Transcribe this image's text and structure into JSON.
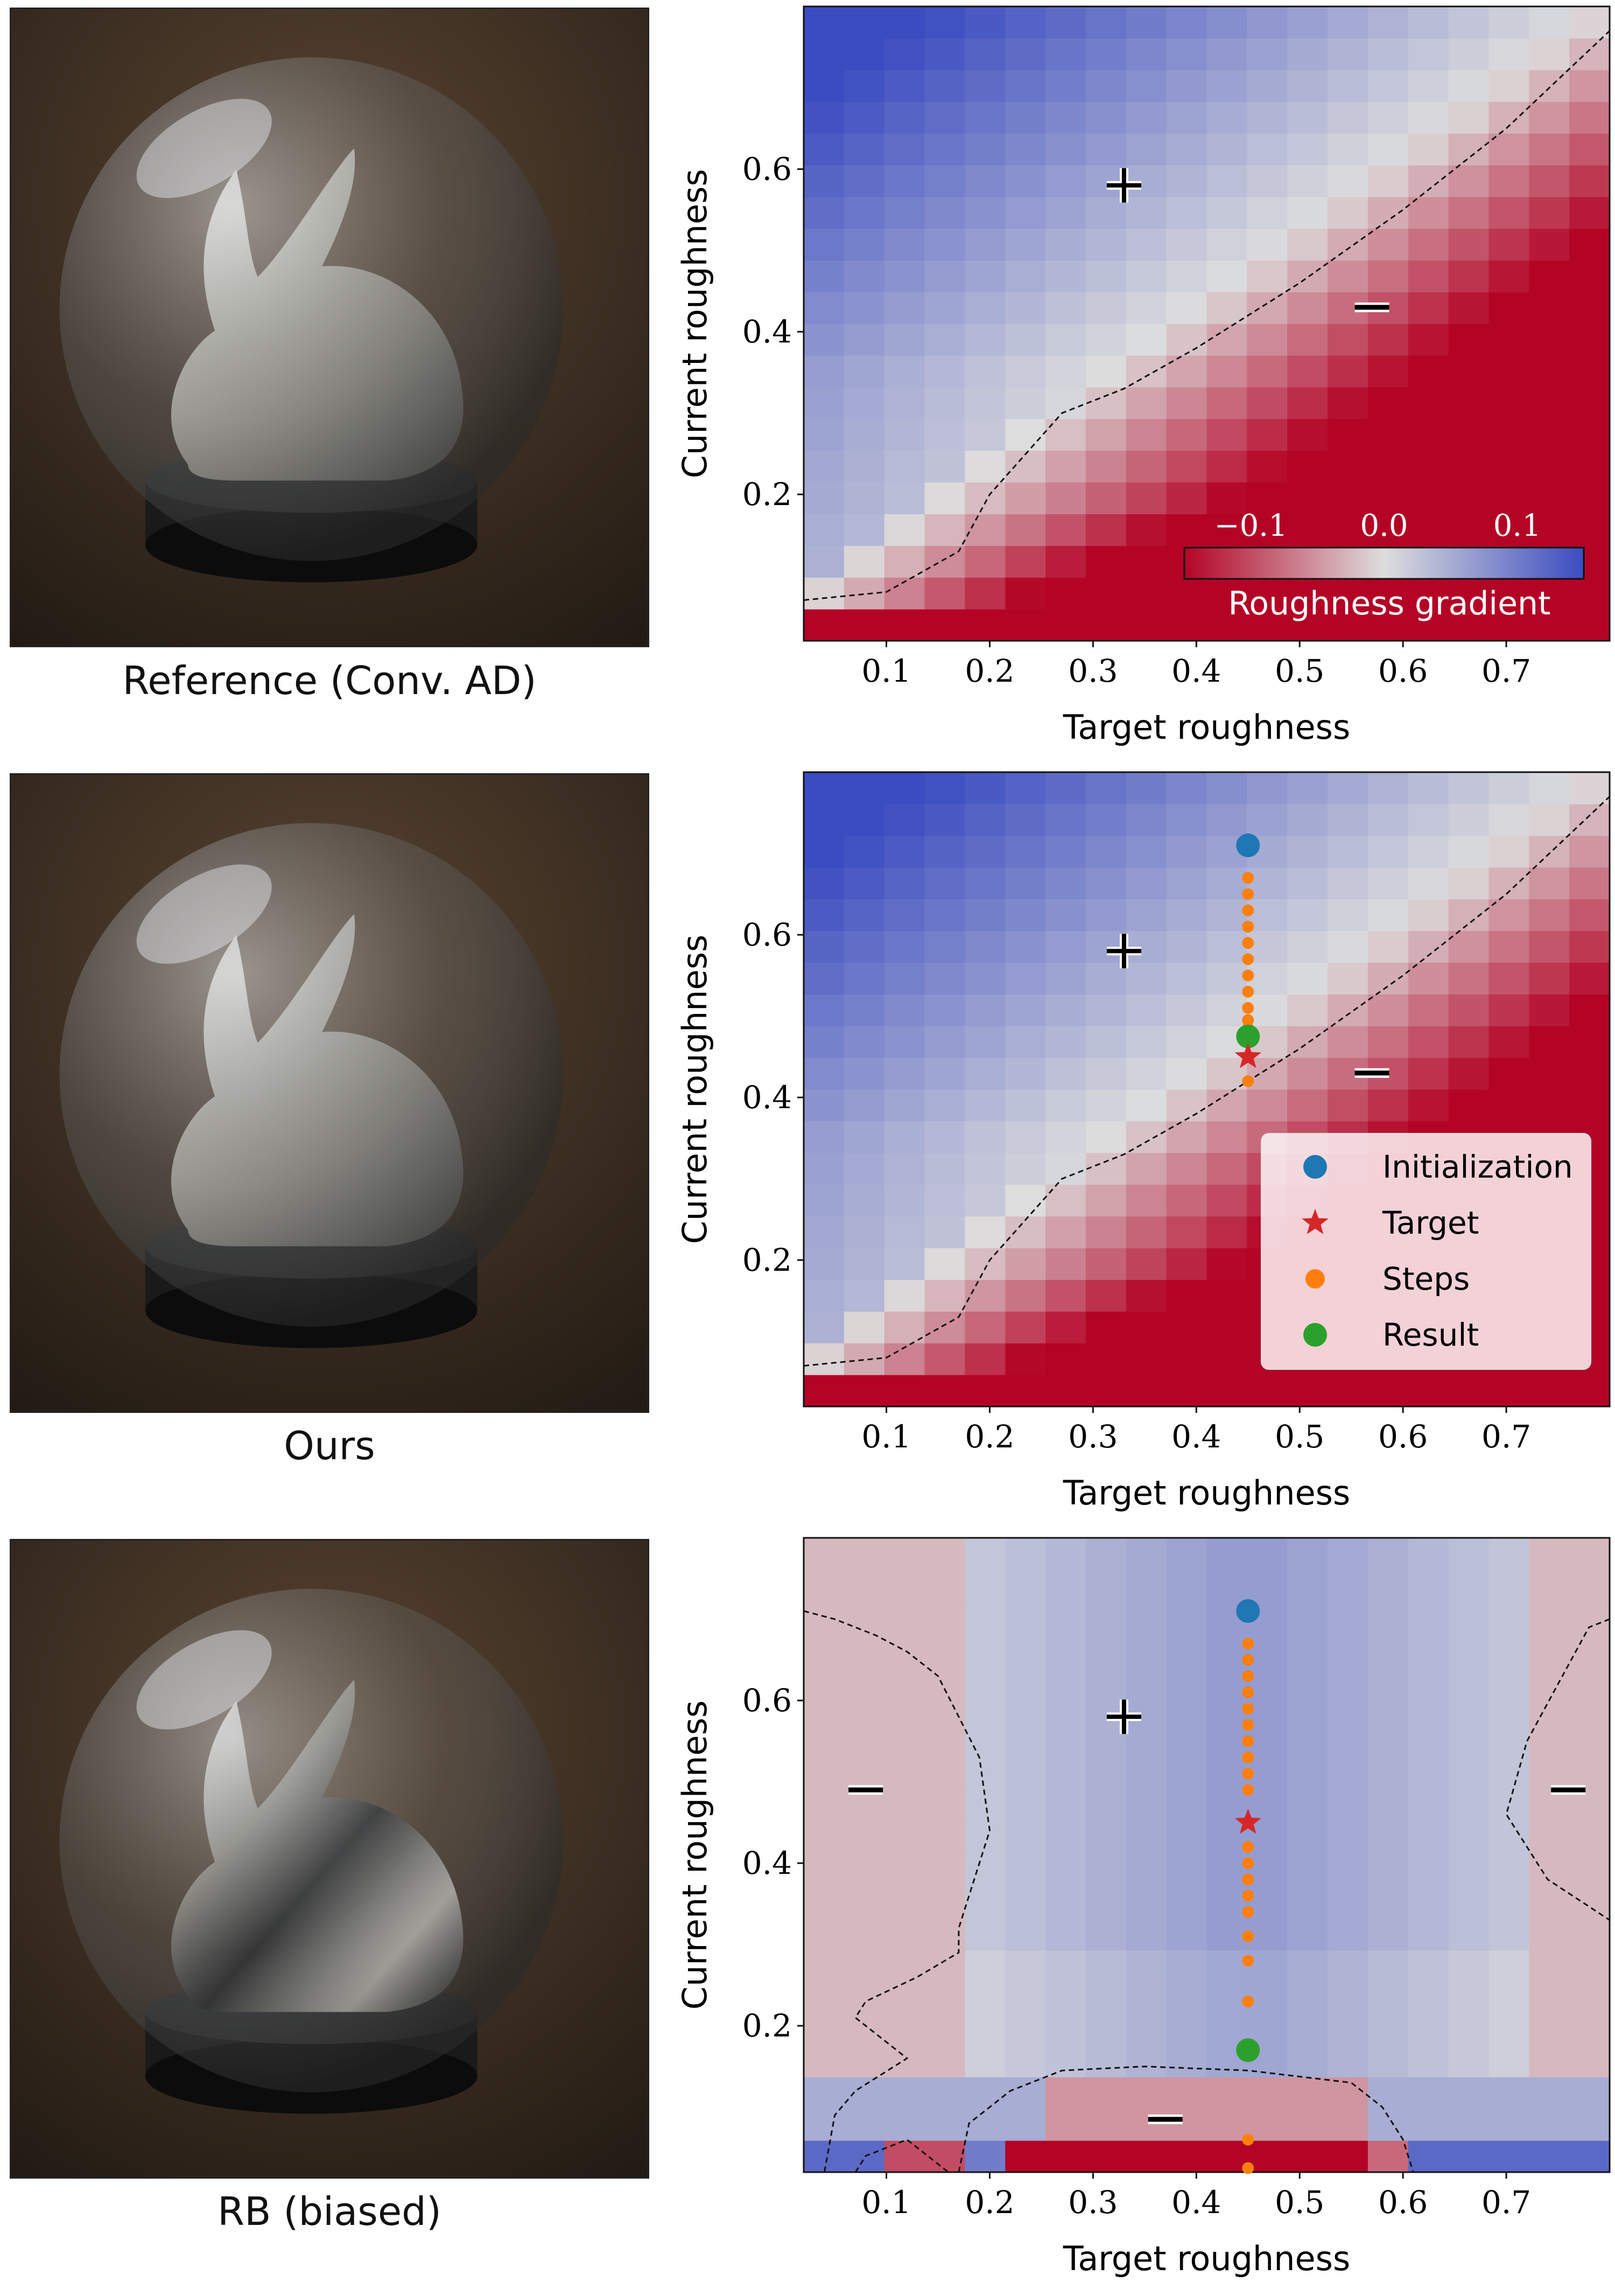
{
  "captions": [
    "Reference (Conv. AD)",
    "Ours",
    "RB (biased)"
  ],
  "colors": {
    "positive": "#3b4cc0",
    "neutral": "#dddddd",
    "negative": "#b40426",
    "initialization": "#1f77b4",
    "target": "#d62728",
    "steps": "#ff7f0e",
    "result": "#2ca02c"
  },
  "colorbar": {
    "label": "Roughness gradient",
    "ticks": [
      "−0.1",
      "0.0",
      "0.1"
    ],
    "range": [
      -0.15,
      0.15
    ]
  },
  "legend": {
    "items": [
      {
        "label": "Initialization",
        "marker": "circle",
        "color": "#1f77b4"
      },
      {
        "label": "Target",
        "marker": "star",
        "color": "#d62728"
      },
      {
        "label": "Steps",
        "marker": "dot",
        "color": "#ff7f0e"
      },
      {
        "label": "Result",
        "marker": "circle",
        "color": "#2ca02c"
      }
    ]
  },
  "chart_data": [
    {
      "type": "heatmap",
      "panel": "reference",
      "xlabel": "Target roughness",
      "ylabel": "Current roughness",
      "xticks": [
        "0.1",
        "0.2",
        "0.3",
        "0.4",
        "0.5",
        "0.6",
        "0.7"
      ],
      "yticks": [
        "0.2",
        "0.4",
        "0.6"
      ],
      "xlim": [
        0.02,
        0.8
      ],
      "ylim": [
        0.02,
        0.8
      ],
      "grid": false,
      "colorbar_shown": true,
      "legend_shown": false,
      "zero_contour": [
        [
          0.02,
          0.07
        ],
        [
          0.1,
          0.08
        ],
        [
          0.17,
          0.13
        ],
        [
          0.2,
          0.2
        ],
        [
          0.27,
          0.3
        ],
        [
          0.33,
          0.33
        ],
        [
          0.4,
          0.38
        ],
        [
          0.5,
          0.46
        ],
        [
          0.6,
          0.55
        ],
        [
          0.7,
          0.65
        ],
        [
          0.8,
          0.77
        ]
      ],
      "field": "reference",
      "annotations": [
        {
          "text": "+",
          "x": 0.33,
          "y": 0.58
        },
        {
          "text": "−",
          "x": 0.57,
          "y": 0.43
        }
      ]
    },
    {
      "type": "heatmap",
      "panel": "ours",
      "xlabel": "Target roughness",
      "ylabel": "Current roughness",
      "xticks": [
        "0.1",
        "0.2",
        "0.3",
        "0.4",
        "0.5",
        "0.6",
        "0.7"
      ],
      "yticks": [
        "0.2",
        "0.4",
        "0.6"
      ],
      "xlim": [
        0.02,
        0.8
      ],
      "ylim": [
        0.02,
        0.8
      ],
      "grid": false,
      "colorbar_shown": false,
      "legend_shown": true,
      "zero_contour": [
        [
          0.02,
          0.07
        ],
        [
          0.1,
          0.08
        ],
        [
          0.17,
          0.13
        ],
        [
          0.2,
          0.2
        ],
        [
          0.27,
          0.3
        ],
        [
          0.33,
          0.33
        ],
        [
          0.4,
          0.38
        ],
        [
          0.5,
          0.46
        ],
        [
          0.6,
          0.55
        ],
        [
          0.7,
          0.65
        ],
        [
          0.8,
          0.77
        ]
      ],
      "field": "reference",
      "annotations": [
        {
          "text": "+",
          "x": 0.33,
          "y": 0.58
        },
        {
          "text": "−",
          "x": 0.57,
          "y": 0.43
        }
      ],
      "initialization": {
        "x": 0.45,
        "y": 0.71
      },
      "target": {
        "x": 0.45,
        "y": 0.45
      },
      "result": {
        "x": 0.45,
        "y": 0.475
      },
      "steps": {
        "x": 0.45,
        "y": [
          0.67,
          0.65,
          0.63,
          0.61,
          0.59,
          0.57,
          0.55,
          0.53,
          0.51,
          0.495,
          0.485,
          0.42
        ]
      }
    },
    {
      "type": "heatmap",
      "panel": "rb_biased",
      "xlabel": "Target roughness",
      "ylabel": "Current roughness",
      "xticks": [
        "0.1",
        "0.2",
        "0.3",
        "0.4",
        "0.5",
        "0.6",
        "0.7"
      ],
      "yticks": [
        "0.2",
        "0.4",
        "0.6"
      ],
      "xlim": [
        0.02,
        0.8
      ],
      "ylim": [
        0.02,
        0.8
      ],
      "grid": false,
      "colorbar_shown": false,
      "legend_shown": false,
      "field": "biased",
      "contours": [
        [
          [
            0.02,
            0.71
          ],
          [
            0.05,
            0.7
          ],
          [
            0.09,
            0.68
          ],
          [
            0.12,
            0.66
          ],
          [
            0.15,
            0.63
          ],
          [
            0.19,
            0.53
          ],
          [
            0.2,
            0.44
          ],
          [
            0.17,
            0.32
          ],
          [
            0.17,
            0.29
          ],
          [
            0.13,
            0.26
          ],
          [
            0.08,
            0.23
          ],
          [
            0.07,
            0.21
          ],
          [
            0.12,
            0.16
          ],
          [
            0.07,
            0.12
          ],
          [
            0.05,
            0.09
          ],
          [
            0.04,
            0.02
          ]
        ],
        [
          [
            0.8,
            0.7
          ],
          [
            0.78,
            0.69
          ],
          [
            0.75,
            0.62
          ],
          [
            0.72,
            0.55
          ],
          [
            0.7,
            0.46
          ],
          [
            0.74,
            0.38
          ],
          [
            0.8,
            0.33
          ]
        ],
        [
          [
            0.17,
            0.02
          ],
          [
            0.18,
            0.08
          ],
          [
            0.22,
            0.12
          ],
          [
            0.27,
            0.145
          ],
          [
            0.35,
            0.15
          ],
          [
            0.45,
            0.145
          ],
          [
            0.55,
            0.13
          ],
          [
            0.58,
            0.1
          ],
          [
            0.6,
            0.06
          ],
          [
            0.61,
            0.02
          ]
        ],
        [
          [
            0.07,
            0.02
          ],
          [
            0.08,
            0.04
          ],
          [
            0.12,
            0.06
          ],
          [
            0.15,
            0.03
          ],
          [
            0.16,
            0.02
          ]
        ]
      ],
      "annotations": [
        {
          "text": "+",
          "x": 0.33,
          "y": 0.58
        },
        {
          "text": "−",
          "x": 0.08,
          "y": 0.49
        },
        {
          "text": "−",
          "x": 0.76,
          "y": 0.49
        },
        {
          "text": "−",
          "x": 0.37,
          "y": 0.085
        }
      ],
      "initialization": {
        "x": 0.45,
        "y": 0.71
      },
      "target": {
        "x": 0.45,
        "y": 0.45
      },
      "result": {
        "x": 0.45,
        "y": 0.17
      },
      "steps": {
        "x": 0.45,
        "y": [
          0.67,
          0.65,
          0.63,
          0.61,
          0.59,
          0.57,
          0.55,
          0.53,
          0.51,
          0.49,
          0.42,
          0.4,
          0.38,
          0.36,
          0.34,
          0.31,
          0.28,
          0.23,
          0.06,
          0.025
        ]
      }
    }
  ]
}
